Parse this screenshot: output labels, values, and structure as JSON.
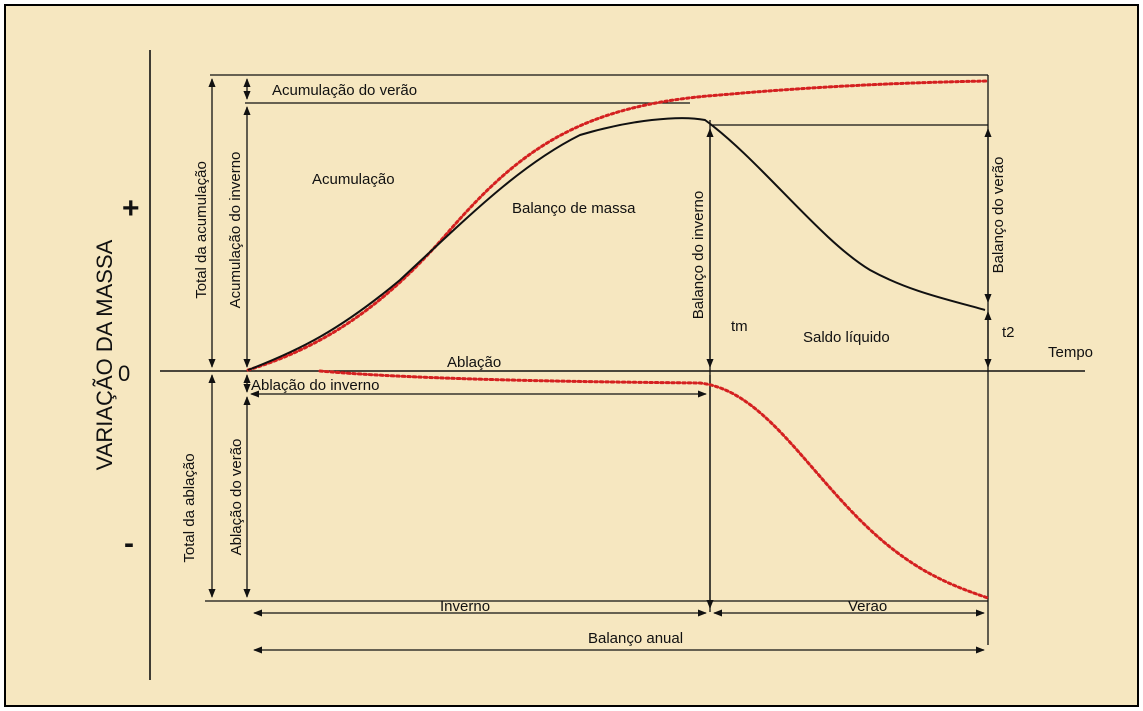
{
  "colors": {
    "background": "#f6e7c0",
    "frame": "#000000",
    "mass_balance_line": "#111111",
    "accumulation_ablation_dotted": "#d42020"
  },
  "axes": {
    "ylabel": "VARIAÇÃO DA MASSA",
    "plus": "+",
    "zero": "0",
    "minus": "-",
    "xlabel": "Tempo"
  },
  "labels": {
    "acumulacao_verao": "Acumulação do verão",
    "total_acumulacao": "Total da acumulação",
    "acumulacao_inverno": "Acumulação do inverno",
    "acumulacao": "Acumulação",
    "balanco_massa": "Balanço de massa",
    "balanco_inverno": "Balanço do inverno",
    "balanco_verao": "Balanço do verão",
    "tm": "tm",
    "saldo_liquido": "Saldo líquido",
    "t2": "t2",
    "ablacao": "Ablação",
    "ablacao_inverno": "Ablação do inverno",
    "total_ablacao": "Total da ablação",
    "ablacao_verao": "Ablação do verão",
    "inverno": "Inverno",
    "verao": "Verao",
    "balanco_anual": "Balanço anual"
  }
}
